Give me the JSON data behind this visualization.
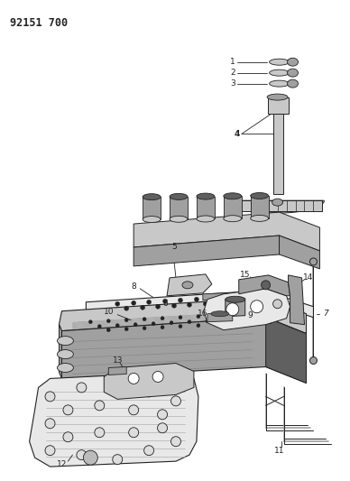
{
  "title": "92151 700",
  "bg_color": "#ffffff",
  "lc": "#222222",
  "fig_width": 3.88,
  "fig_height": 5.33,
  "dpi": 100,
  "c_light": "#c8c8c8",
  "c_mid": "#a0a0a0",
  "c_dark": "#606060",
  "c_vlight": "#e8e8e8",
  "c_white": "#ffffff"
}
